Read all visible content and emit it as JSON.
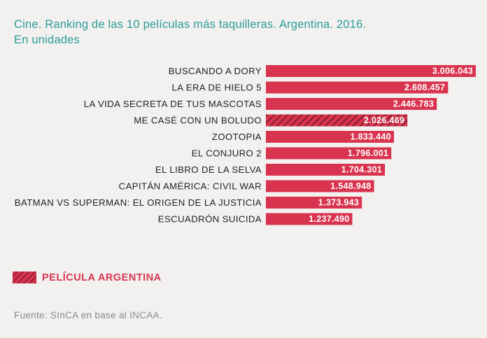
{
  "chart_data": {
    "type": "bar",
    "orientation": "horizontal",
    "title": "Cine. Ranking de las 10 películas más taquilleras. Argentina. 2016.",
    "subtitle": "En unidades",
    "categories": [
      "BUSCANDO A DORY",
      "LA ERA DE HIELO 5",
      "LA VIDA SECRETA DE TUS MASCOTAS",
      "ME CASÉ CON UN BOLUDO",
      "ZOOTOPIA",
      "EL CONJURO 2",
      "EL LIBRO DE LA SELVA",
      "CAPITÁN AMÉRICA: CIVIL WAR",
      "BATMAN VS SUPERMAN: EL ORIGEN DE LA JUSTICIA",
      "ESCUADRÓN SUICIDA"
    ],
    "values": [
      3006043,
      2608457,
      2446783,
      2026469,
      1833440,
      1796001,
      1704301,
      1548948,
      1373943,
      1237490
    ],
    "value_labels": [
      "3.006.043",
      "2.608.457",
      "2.446.783",
      "2.026.469",
      "1.833.440",
      "1.796.001",
      "1.704.301",
      "1.548.948",
      "1.373.943",
      "1.237.490"
    ],
    "highlighted": [
      false,
      false,
      false,
      true,
      false,
      false,
      false,
      false,
      false,
      false
    ],
    "legend": {
      "label": "PELÍCULA ARGENTINA",
      "position": "bottom-left"
    },
    "source": "Fuente: SInCA en base al INCAA.",
    "colors": {
      "bar": "#d9344f",
      "hatch": "#8e1f30",
      "title": "#2e9c99",
      "label": "#222222",
      "source": "#8a8a8a"
    },
    "grid": false
  }
}
